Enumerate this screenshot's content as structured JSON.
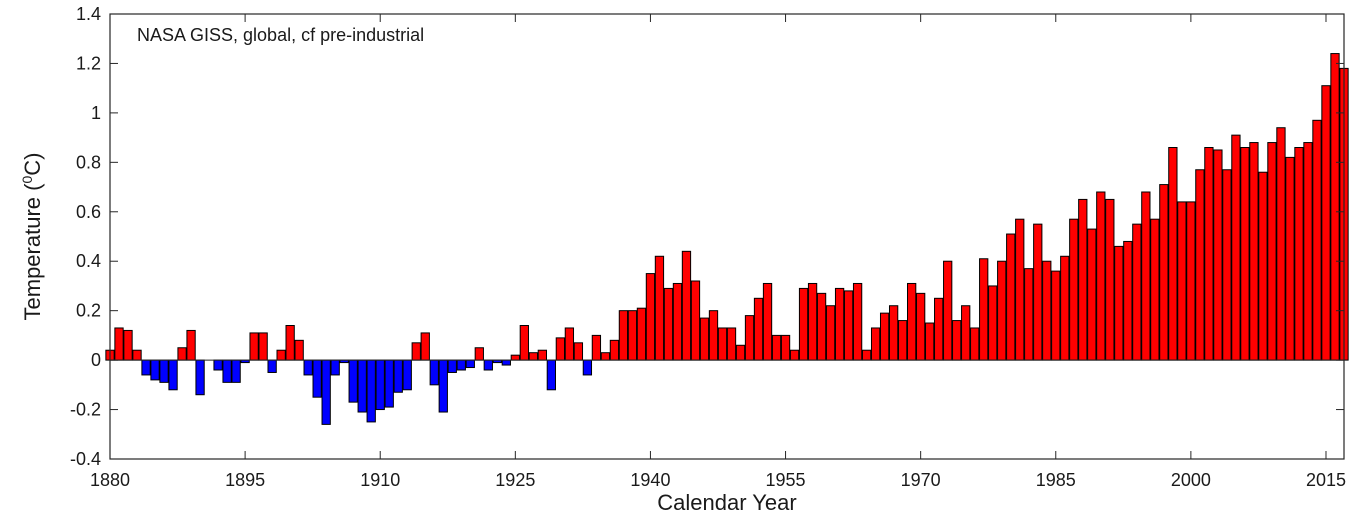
{
  "chart_data": {
    "type": "bar",
    "title": "NASA GISS, global, cf pre-industrial",
    "xlabel": "Calendar Year",
    "ylabel": "Temperature (⁰C)",
    "ylabel_parts": {
      "before": "Temperature (",
      "sup": "0",
      "after": "C)"
    },
    "xlim": [
      1880,
      2017
    ],
    "ylim": [
      -0.4,
      1.4
    ],
    "xticks": [
      1880,
      1895,
      1910,
      1925,
      1940,
      1955,
      1970,
      1985,
      2000,
      2015
    ],
    "yticks": [
      -0.4,
      -0.2,
      0,
      0.2,
      0.4,
      0.6,
      0.8,
      1,
      1.2,
      1.4
    ],
    "ytick_labels": [
      "-0.4",
      "-0.2",
      "0",
      "0.2",
      "0.4",
      "0.6",
      "0.8",
      "1",
      "1.2",
      "1.4"
    ],
    "grid": false,
    "colors": {
      "positive": "#ff0000",
      "negative": "#0000ff",
      "edge": "#000000",
      "axis": "#262626"
    },
    "start_year": 1880,
    "values": [
      0.04,
      0.13,
      0.12,
      0.04,
      -0.06,
      -0.08,
      -0.09,
      -0.12,
      0.05,
      0.12,
      -0.14,
      0.0,
      -0.04,
      -0.09,
      -0.09,
      -0.01,
      0.11,
      0.11,
      -0.05,
      0.04,
      0.14,
      0.08,
      -0.06,
      -0.15,
      -0.26,
      -0.06,
      -0.01,
      -0.17,
      -0.21,
      -0.25,
      -0.2,
      -0.19,
      -0.13,
      -0.12,
      0.07,
      0.11,
      -0.1,
      -0.21,
      -0.05,
      -0.04,
      -0.03,
      0.05,
      -0.04,
      -0.01,
      -0.02,
      0.02,
      0.14,
      0.03,
      0.04,
      -0.12,
      0.09,
      0.13,
      0.07,
      -0.06,
      0.1,
      0.03,
      0.08,
      0.2,
      0.2,
      0.21,
      0.35,
      0.42,
      0.29,
      0.31,
      0.44,
      0.32,
      0.17,
      0.2,
      0.13,
      0.13,
      0.06,
      0.18,
      0.25,
      0.31,
      0.1,
      0.1,
      0.04,
      0.29,
      0.31,
      0.27,
      0.22,
      0.29,
      0.28,
      0.31,
      0.04,
      0.13,
      0.19,
      0.22,
      0.16,
      0.31,
      0.27,
      0.15,
      0.25,
      0.4,
      0.16,
      0.22,
      0.13,
      0.41,
      0.3,
      0.4,
      0.51,
      0.57,
      0.37,
      0.55,
      0.4,
      0.36,
      0.42,
      0.57,
      0.65,
      0.53,
      0.68,
      0.65,
      0.46,
      0.48,
      0.55,
      0.68,
      0.57,
      0.71,
      0.86,
      0.64,
      0.64,
      0.77,
      0.86,
      0.85,
      0.77,
      0.91,
      0.86,
      0.88,
      0.76,
      0.88,
      0.94,
      0.82,
      0.86,
      0.88,
      0.97,
      1.11,
      1.24,
      1.18
    ]
  }
}
